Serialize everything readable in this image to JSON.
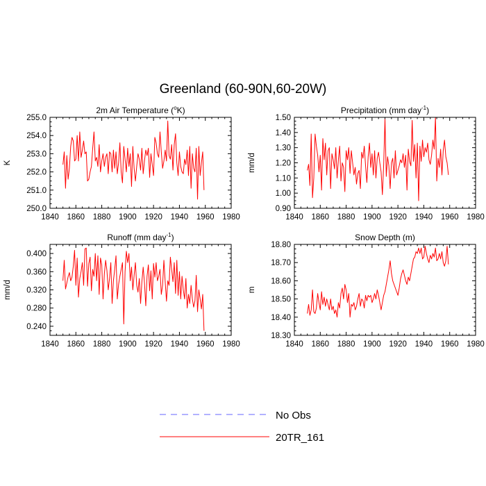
{
  "title": "Greenland (60-90N,60-20W)",
  "legend": [
    {
      "label": "No Obs",
      "color": "#6666ff",
      "style": "dashed"
    },
    {
      "label": "20TR_161",
      "color": "#ff0000",
      "style": "solid"
    }
  ],
  "chart_data": [
    {
      "type": "line",
      "title_main": "2m Air Temperature (",
      "title_sup": "o",
      "title_end": "K)",
      "ylabel": "K",
      "xlim": [
        1840,
        1980
      ],
      "xticks": [
        1840,
        1860,
        1880,
        1900,
        1920,
        1940,
        1960,
        1980
      ],
      "ylim": [
        250.0,
        255.0
      ],
      "yticks": [
        250.0,
        251.0,
        252.0,
        253.0,
        254.0,
        255.0
      ],
      "ydecimals": 1,
      "series": [
        {
          "name": "20TR_161",
          "color": "#ff0000",
          "x_start": 1850,
          "x_step": 1,
          "values": [
            252.4,
            253.1,
            251.1,
            252.9,
            251.6,
            252.2,
            253.4,
            253.9,
            253.7,
            252.6,
            252.7,
            254.0,
            252.6,
            254.2,
            252.8,
            253.2,
            253.7,
            253.0,
            253.1,
            251.5,
            251.6,
            252.0,
            252.3,
            253.3,
            254.2,
            252.6,
            252.8,
            252.3,
            253.5,
            252.0,
            252.6,
            253.0,
            252.3,
            252.8,
            253.0,
            251.9,
            253.1,
            253.0,
            252.0,
            253.2,
            252.2,
            253.1,
            251.9,
            252.5,
            253.6,
            252.0,
            251.4,
            253.4,
            252.7,
            252.0,
            253.3,
            252.3,
            253.0,
            251.2,
            253.4,
            252.2,
            251.5,
            252.3,
            253.0,
            252.7,
            252.1,
            253.3,
            251.9,
            252.6,
            253.2,
            252.9,
            253.3,
            251.7,
            253.0,
            252.4,
            251.8,
            253.9,
            253.6,
            253.0,
            252.8,
            254.2,
            253.1,
            252.2,
            252.6,
            253.2,
            252.6,
            254.8,
            252.9,
            252.7,
            253.5,
            252.1,
            253.5,
            254.1,
            252.5,
            251.8,
            253.1,
            252.3,
            252.0,
            251.9,
            252.7,
            252.4,
            253.2,
            251.8,
            253.4,
            251.1,
            253.0,
            252.2,
            252.0,
            253.3,
            250.5,
            253.4,
            251.8,
            252.5,
            253.1,
            251.0
          ]
        }
      ]
    },
    {
      "type": "line",
      "title_main": "Precipitation (mm day",
      "title_sup": "-1",
      "title_end": ")",
      "ylabel": "mm/d",
      "xlim": [
        1840,
        1980
      ],
      "xticks": [
        1840,
        1860,
        1880,
        1900,
        1920,
        1940,
        1960,
        1980
      ],
      "ylim": [
        0.9,
        1.5
      ],
      "yticks": [
        0.9,
        1.0,
        1.1,
        1.2,
        1.3,
        1.4,
        1.5
      ],
      "ydecimals": 2,
      "series": [
        {
          "name": "20TR_161",
          "color": "#ff0000",
          "x_start": 1850,
          "x_step": 1,
          "values": [
            1.15,
            1.19,
            1.05,
            1.39,
            0.97,
            1.1,
            1.39,
            1.31,
            1.25,
            1.14,
            1.25,
            1.02,
            1.36,
            1.22,
            1.33,
            1.12,
            1.28,
            1.3,
            1.03,
            1.26,
            1.22,
            1.16,
            1.3,
            1.1,
            1.22,
            1.31,
            1.08,
            1.2,
            1.17,
            1.01,
            1.28,
            1.22,
            1.3,
            1.13,
            1.28,
            1.2,
            1.12,
            1.17,
            1.06,
            1.13,
            1.15,
            1.03,
            1.27,
            1.23,
            1.31,
            1.18,
            1.07,
            1.24,
            1.33,
            1.17,
            1.26,
            1.12,
            1.28,
            1.1,
            1.23,
            1.27,
            1.2,
            1.14,
            0.99,
            1.19,
            1.49,
            1.11,
            1.24,
            1.18,
            1.03,
            1.2,
            1.23,
            1.1,
            1.28,
            1.12,
            1.15,
            1.18,
            1.22,
            1.2,
            1.26,
            1.17,
            1.25,
            1.02,
            1.29,
            1.21,
            1.18,
            1.48,
            1.21,
            1.32,
            1.1,
            1.33,
            0.95,
            1.31,
            1.21,
            1.35,
            1.24,
            1.3,
            1.27,
            1.33,
            1.22,
            1.19,
            1.25,
            1.35,
            1.29,
            1.5,
            1.08,
            1.23,
            1.17,
            1.29,
            1.12,
            1.28,
            1.35,
            1.24,
            1.2,
            1.12
          ]
        }
      ]
    },
    {
      "type": "line",
      "title_main": "Runoff (mm day",
      "title_sup": "-1",
      "title_end": ")",
      "ylabel": "mm/d",
      "xlim": [
        1840,
        1980
      ],
      "xticks": [
        1840,
        1860,
        1880,
        1900,
        1920,
        1940,
        1960,
        1980
      ],
      "ylim": [
        0.22,
        0.42
      ],
      "yticks": [
        0.24,
        0.28,
        0.32,
        0.36,
        0.4
      ],
      "ydecimals": 3,
      "series": [
        {
          "name": "20TR_161",
          "color": "#ff0000",
          "x_start": 1850,
          "x_step": 1,
          "values": [
            0.34,
            0.385,
            0.322,
            0.335,
            0.349,
            0.358,
            0.34,
            0.348,
            0.372,
            0.407,
            0.33,
            0.39,
            0.304,
            0.345,
            0.36,
            0.38,
            0.33,
            0.41,
            0.412,
            0.328,
            0.378,
            0.392,
            0.318,
            0.365,
            0.35,
            0.4,
            0.34,
            0.395,
            0.31,
            0.39,
            0.375,
            0.3,
            0.355,
            0.385,
            0.362,
            0.32,
            0.345,
            0.38,
            0.29,
            0.34,
            0.365,
            0.395,
            0.3,
            0.332,
            0.35,
            0.365,
            0.38,
            0.245,
            0.36,
            0.405,
            0.38,
            0.4,
            0.34,
            0.37,
            0.32,
            0.352,
            0.38,
            0.33,
            0.315,
            0.345,
            0.29,
            0.338,
            0.37,
            0.335,
            0.285,
            0.35,
            0.375,
            0.318,
            0.362,
            0.3,
            0.378,
            0.348,
            0.38,
            0.34,
            0.35,
            0.365,
            0.31,
            0.33,
            0.385,
            0.338,
            0.295,
            0.34,
            0.33,
            0.392,
            0.365,
            0.338,
            0.38,
            0.312,
            0.385,
            0.308,
            0.36,
            0.3,
            0.35,
            0.32,
            0.3,
            0.345,
            0.28,
            0.31,
            0.29,
            0.33,
            0.3,
            0.282,
            0.296,
            0.352,
            0.272,
            0.32,
            0.3,
            0.278,
            0.31,
            0.23
          ]
        }
      ]
    },
    {
      "type": "line",
      "title_main": "Snow Depth (m)",
      "title_sup": "",
      "title_end": "",
      "ylabel": "m",
      "xlim": [
        1840,
        1980
      ],
      "xticks": [
        1840,
        1860,
        1880,
        1900,
        1920,
        1940,
        1960,
        1980
      ],
      "ylim": [
        18.3,
        18.8
      ],
      "yticks": [
        18.3,
        18.4,
        18.5,
        18.6,
        18.7,
        18.8
      ],
      "ydecimals": 2,
      "series": [
        {
          "name": "20TR_161",
          "color": "#ff0000",
          "x_start": 1850,
          "x_step": 1,
          "values": [
            18.42,
            18.47,
            18.41,
            18.44,
            18.55,
            18.43,
            18.42,
            18.45,
            18.53,
            18.48,
            18.44,
            18.54,
            18.47,
            18.51,
            18.46,
            18.5,
            18.47,
            18.44,
            18.5,
            18.44,
            18.46,
            18.42,
            18.44,
            18.4,
            18.48,
            18.45,
            18.53,
            18.56,
            18.5,
            18.58,
            18.55,
            18.48,
            18.53,
            18.4,
            18.47,
            18.46,
            18.48,
            18.44,
            18.46,
            18.5,
            18.53,
            18.46,
            18.5,
            18.49,
            18.45,
            18.52,
            18.49,
            18.52,
            18.51,
            18.52,
            18.48,
            18.5,
            18.53,
            18.5,
            18.55,
            18.52,
            18.48,
            18.44,
            18.48,
            18.52,
            18.54,
            18.58,
            18.62,
            18.66,
            18.71,
            18.64,
            18.6,
            18.58,
            18.56,
            18.54,
            18.52,
            18.56,
            18.61,
            18.64,
            18.66,
            18.63,
            18.6,
            18.58,
            18.62,
            18.6,
            18.64,
            18.68,
            18.72,
            18.73,
            18.76,
            18.75,
            18.78,
            18.75,
            18.78,
            18.72,
            18.73,
            18.79,
            18.75,
            18.72,
            18.7,
            18.74,
            18.72,
            18.75,
            18.73,
            18.78,
            18.71,
            18.72,
            18.75,
            18.72,
            18.76,
            18.7,
            18.68,
            18.71,
            18.79,
            18.69
          ]
        }
      ]
    }
  ]
}
